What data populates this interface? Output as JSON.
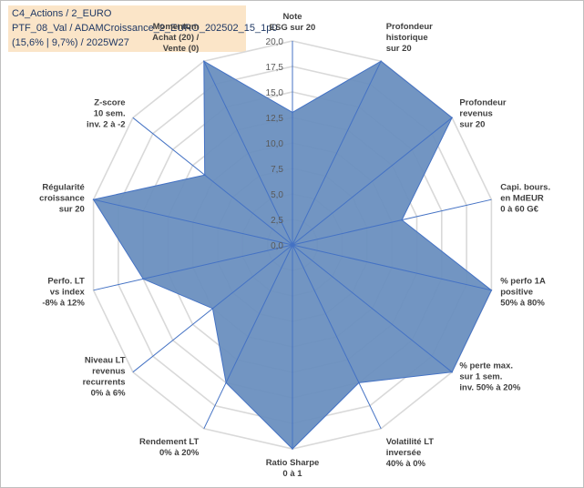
{
  "header": {
    "line1": "C4_Actions / 2_EURO",
    "line2": "PTF_08_Val / ADAMCroissance_2_EURO_202502_15_1p0",
    "line3": "(15,6% | 9,7%) / 2025W27"
  },
  "chart_data": {
    "type": "radar",
    "rmax": 20,
    "tick_values": [
      0,
      2.5,
      5,
      7.5,
      10,
      12.5,
      15,
      17.5,
      20
    ],
    "tick_labels": [
      "0,0",
      "2,5",
      "5,0",
      "7,5",
      "10,0",
      "12,5",
      "15,0",
      "17,5",
      "20,0"
    ],
    "categories": [
      [
        "Note",
        "ESG sur 20"
      ],
      [
        "Profondeur",
        "historique",
        "sur 20"
      ],
      [
        "Profondeur",
        "revenus",
        "sur 20"
      ],
      [
        "Capi. bours.",
        "en MdEUR",
        "0 à 60 G€"
      ],
      [
        "% perfo 1A",
        "positive",
        "50% à 80%"
      ],
      [
        "% perte max.",
        "sur 1 sem.",
        "inv. 50% à 20%"
      ],
      [
        "Volatilité LT",
        "inversée",
        "40% à 0%"
      ],
      [
        "Ratio Sharpe",
        "0 à 1"
      ],
      [
        "Rendement LT",
        "0% à 20%"
      ],
      [
        "Niveau LT",
        "revenus",
        "recurrents",
        "0% à 6%"
      ],
      [
        "Perfo. LT",
        "vs index",
        "-8% à 12%"
      ],
      [
        "Régularité",
        "croissance",
        "sur 20"
      ],
      [
        "Z-score",
        "10 sem.",
        "inv. 2 à -2"
      ],
      [
        "Momentum",
        "Achat (20) /",
        "Vente (0)"
      ]
    ],
    "values": [
      13,
      20,
      20,
      11,
      20,
      20,
      15,
      20,
      15,
      10,
      15,
      20,
      11,
      20
    ],
    "colors": {
      "fill": "#6a8fbf",
      "stroke": "#4472c4",
      "grid": "#d9d9d9",
      "axis": "#4472c4"
    },
    "grid": true,
    "legend": "none"
  }
}
